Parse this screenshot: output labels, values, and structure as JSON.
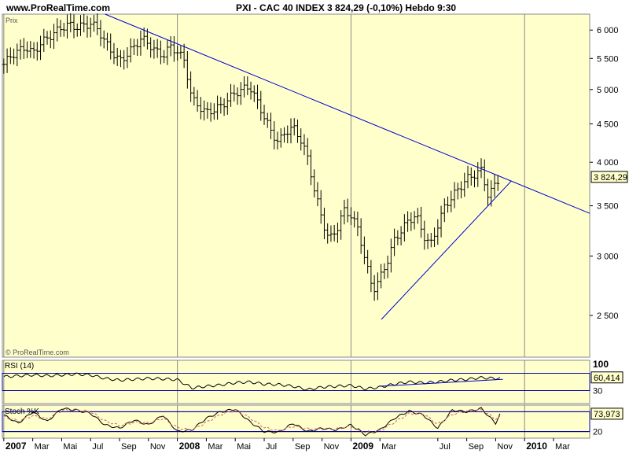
{
  "header": {
    "site": "www.ProRealTime.com",
    "title": "PXI - CAC 40 INDEX    3 824,29 (-0,10%)    Hebdo  9:30"
  },
  "panels": {
    "price_label": "Prix",
    "copyright": "© ProRealTime.com",
    "rsi_label": "RSI (14)",
    "stoch_label": "Stoch %K"
  },
  "colors": {
    "panel_bg": "#ffffcc",
    "trendline": "#0000cc",
    "rsi_line": "#000000",
    "stoch_k": "#000000",
    "stoch_d": "#d06060",
    "grid": "#999999"
  },
  "chart_data": [
    {
      "type": "ohlc",
      "panel": "price",
      "scale": "log",
      "ylim": [
        2200,
        6300
      ],
      "y_ticks": [
        {
          "value": 6000,
          "label": "6 000"
        },
        {
          "value": 5500,
          "label": "5 500"
        },
        {
          "value": 5000,
          "label": "5 000"
        },
        {
          "value": 4500,
          "label": "4 500"
        },
        {
          "value": 4000,
          "label": "4 000"
        },
        {
          "value": 3500,
          "label": "3 500"
        },
        {
          "value": 3000,
          "label": "3 000"
        },
        {
          "value": 2500,
          "label": "2 500"
        }
      ],
      "x_ticks": [
        {
          "t": 0,
          "label": "2007",
          "bold": true
        },
        {
          "t": 2,
          "label": "Mar"
        },
        {
          "t": 4,
          "label": "Mai"
        },
        {
          "t": 6,
          "label": "Jul"
        },
        {
          "t": 8,
          "label": "Sep"
        },
        {
          "t": 10,
          "label": "Nov"
        },
        {
          "t": 12,
          "label": "2008",
          "bold": true
        },
        {
          "t": 14,
          "label": "Mar"
        },
        {
          "t": 16,
          "label": "Mai"
        },
        {
          "t": 18,
          "label": "Jul"
        },
        {
          "t": 20,
          "label": "Sep"
        },
        {
          "t": 22,
          "label": "Nov"
        },
        {
          "t": 24,
          "label": "2009",
          "bold": true
        },
        {
          "t": 26,
          "label": "Mar"
        },
        {
          "t": 30,
          "label": "Jul"
        },
        {
          "t": 32,
          "label": "Sep"
        },
        {
          "t": 34,
          "label": "Nov"
        },
        {
          "t": 36,
          "label": "2010",
          "bold": true
        },
        {
          "t": 38,
          "label": "Mar"
        }
      ],
      "xlim": [
        -0.1,
        40.5
      ],
      "year_lines": [
        0,
        12,
        24,
        36
      ],
      "last_price_label": "3 824,29",
      "last_price": 3824.29,
      "close_path": [
        [
          0,
          5400
        ],
        [
          0.5,
          5550
        ],
        [
          1,
          5620
        ],
        [
          1.5,
          5700
        ],
        [
          2,
          5580
        ],
        [
          2.5,
          5750
        ],
        [
          3,
          5850
        ],
        [
          3.5,
          5950
        ],
        [
          4,
          6050
        ],
        [
          4.5,
          6100
        ],
        [
          5,
          6050
        ],
        [
          5.5,
          6080
        ],
        [
          6,
          6120
        ],
        [
          6.5,
          6020
        ],
        [
          7,
          5780
        ],
        [
          7.5,
          5600
        ],
        [
          8,
          5450
        ],
        [
          8.5,
          5560
        ],
        [
          9,
          5700
        ],
        [
          9.5,
          5850
        ],
        [
          10,
          5760
        ],
        [
          10.5,
          5620
        ],
        [
          11,
          5550
        ],
        [
          11.5,
          5700
        ],
        [
          12,
          5620
        ],
        [
          12.5,
          5450
        ],
        [
          13,
          4850
        ],
        [
          13.5,
          4750
        ],
        [
          14,
          4650
        ],
        [
          14.5,
          4700
        ],
        [
          15,
          4750
        ],
        [
          15.5,
          4850
        ],
        [
          16,
          4950
        ],
        [
          16.5,
          5000
        ],
        [
          17,
          5050
        ],
        [
          17.5,
          4820
        ],
        [
          18,
          4600
        ],
        [
          18.5,
          4380
        ],
        [
          19,
          4250
        ],
        [
          19.5,
          4400
        ],
        [
          20,
          4450
        ],
        [
          20.5,
          4300
        ],
        [
          21,
          4050
        ],
        [
          21.5,
          3650
        ],
        [
          22,
          3350
        ],
        [
          22.5,
          3150
        ],
        [
          23,
          3250
        ],
        [
          23.5,
          3450
        ],
        [
          24,
          3400
        ],
        [
          24.5,
          3250
        ],
        [
          25,
          2950
        ],
        [
          25.5,
          2700
        ],
        [
          26,
          2800
        ],
        [
          26.5,
          2950
        ],
        [
          27,
          3150
        ],
        [
          27.5,
          3250
        ],
        [
          28,
          3350
        ],
        [
          28.5,
          3400
        ],
        [
          29,
          3200
        ],
        [
          29.5,
          3100
        ],
        [
          30,
          3300
        ],
        [
          30.5,
          3500
        ],
        [
          31,
          3600
        ],
        [
          31.5,
          3700
        ],
        [
          32,
          3800
        ],
        [
          32.5,
          3850
        ],
        [
          33,
          3900
        ],
        [
          33.5,
          3600
        ],
        [
          34,
          3750
        ],
        [
          34.3,
          3824.29
        ]
      ],
      "trendlines": [
        {
          "from": [
            7,
            6300
          ],
          "to": [
            40.5,
            3420
          ]
        },
        {
          "from": [
            26.1,
            2470
          ],
          "to": [
            35.1,
            3780
          ]
        }
      ]
    },
    {
      "type": "line",
      "panel": "rsi",
      "ylim": [
        0,
        100
      ],
      "levels": [
        {
          "value": 70,
          "label": ""
        },
        {
          "value": 30,
          "label": "30"
        }
      ],
      "top_label": "100",
      "current_label": "60,414",
      "current_value": 60.414,
      "series": [
        {
          "values": [
            [
              0,
              62
            ],
            [
              1,
              64
            ],
            [
              2,
              66
            ],
            [
              3,
              64
            ],
            [
              4,
              66
            ],
            [
              5,
              68
            ],
            [
              6,
              66
            ],
            [
              7,
              58
            ],
            [
              8,
              54
            ],
            [
              9,
              56
            ],
            [
              10,
              58
            ],
            [
              11,
              57
            ],
            [
              12,
              55
            ],
            [
              13,
              36
            ],
            [
              14,
              40
            ],
            [
              15,
              43
            ],
            [
              16,
              48
            ],
            [
              17,
              50
            ],
            [
              18,
              45
            ],
            [
              19,
              44
            ],
            [
              20,
              40
            ],
            [
              21,
              32
            ],
            [
              22,
              38
            ],
            [
              23,
              40
            ],
            [
              24,
              42
            ],
            [
              25,
              34
            ],
            [
              26,
              38
            ],
            [
              27,
              45
            ],
            [
              28,
              50
            ],
            [
              29,
              48
            ],
            [
              30,
              50
            ],
            [
              31,
              54
            ],
            [
              32,
              56
            ],
            [
              33,
              60
            ],
            [
              34,
              58
            ],
            [
              34.3,
              60.4
            ]
          ]
        }
      ],
      "trendline": {
        "from": [
          26,
          40
        ],
        "to": [
          34.5,
          56
        ]
      }
    },
    {
      "type": "line",
      "panel": "stoch",
      "ylim": [
        0,
        100
      ],
      "levels": [
        {
          "value": 80,
          "label": ""
        },
        {
          "value": 20,
          "label": "20"
        }
      ],
      "current_label": "73,973",
      "current_value": 73.973,
      "series": [
        {
          "values": [
            [
              0,
              70
            ],
            [
              1,
              45
            ],
            [
              2,
              80
            ],
            [
              3,
              50
            ],
            [
              4,
              90
            ],
            [
              5,
              85
            ],
            [
              6,
              75
            ],
            [
              7,
              40
            ],
            [
              8,
              30
            ],
            [
              9,
              55
            ],
            [
              10,
              40
            ],
            [
              11,
              70
            ],
            [
              12,
              20
            ],
            [
              13,
              25
            ],
            [
              14,
              60
            ],
            [
              15,
              80
            ],
            [
              16,
              88
            ],
            [
              17,
              50
            ],
            [
              18,
              20
            ],
            [
              19,
              18
            ],
            [
              20,
              45
            ],
            [
              21,
              20
            ],
            [
              22,
              30
            ],
            [
              23,
              25
            ],
            [
              24,
              40
            ],
            [
              25,
              10
            ],
            [
              26,
              25
            ],
            [
              27,
              60
            ],
            [
              28,
              82
            ],
            [
              29,
              70
            ],
            [
              30,
              30
            ],
            [
              31,
              85
            ],
            [
              32,
              80
            ],
            [
              33,
              90
            ],
            [
              34,
              45
            ],
            [
              34.3,
              74
            ]
          ]
        },
        {
          "values": [
            [
              0,
              65
            ],
            [
              1,
              52
            ],
            [
              2,
              68
            ],
            [
              3,
              58
            ],
            [
              4,
              84
            ],
            [
              5,
              86
            ],
            [
              6,
              80
            ],
            [
              7,
              52
            ],
            [
              8,
              38
            ],
            [
              9,
              48
            ],
            [
              10,
              46
            ],
            [
              11,
              60
            ],
            [
              12,
              32
            ],
            [
              13,
              24
            ],
            [
              14,
              48
            ],
            [
              15,
              72
            ],
            [
              16,
              84
            ],
            [
              17,
              62
            ],
            [
              18,
              32
            ],
            [
              19,
              22
            ],
            [
              20,
              36
            ],
            [
              21,
              28
            ],
            [
              22,
              28
            ],
            [
              23,
              28
            ],
            [
              24,
              36
            ],
            [
              25,
              18
            ],
            [
              26,
              22
            ],
            [
              27,
              48
            ],
            [
              28,
              74
            ],
            [
              29,
              74
            ],
            [
              30,
              42
            ],
            [
              31,
              72
            ],
            [
              32,
              82
            ],
            [
              33,
              86
            ],
            [
              34,
              58
            ],
            [
              34.3,
              66
            ]
          ]
        }
      ]
    }
  ]
}
